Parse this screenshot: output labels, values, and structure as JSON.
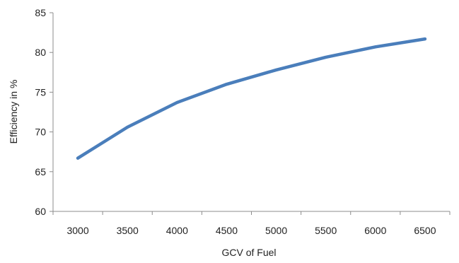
{
  "chart_data": {
    "type": "line",
    "title": "",
    "xlabel": "GCV of Fuel",
    "ylabel": "Efficiency in %",
    "x": [
      3000,
      3500,
      4000,
      4500,
      5000,
      5500,
      6000,
      6500
    ],
    "x_tick_labels": [
      "3000",
      "3500",
      "4000",
      "4500",
      "5000",
      "5500",
      "6000",
      "6500"
    ],
    "y_tick_values": [
      60,
      65,
      70,
      75,
      80,
      85
    ],
    "y_tick_labels": [
      "60",
      "65",
      "70",
      "75",
      "80",
      "85"
    ],
    "ylim": [
      60,
      85
    ],
    "grid": false,
    "legend": "none",
    "series": [
      {
        "values": [
          66.7,
          70.6,
          73.7,
          76.0,
          77.8,
          79.4,
          80.7,
          81.7
        ],
        "color": "#4a7ebb"
      }
    ]
  }
}
